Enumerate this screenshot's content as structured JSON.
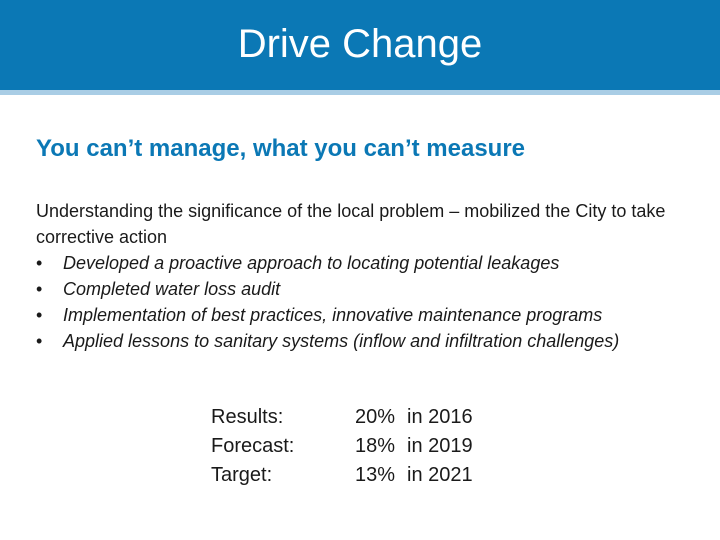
{
  "header": {
    "title": "Drive Change"
  },
  "main": {
    "subtitle": "You can’t manage, what you can’t measure",
    "intro": "Understanding the significance of the local problem – mobilized the City to take corrective action",
    "bullet_glyph": "•",
    "bullets": [
      "Developed a proactive approach to locating potential leakages",
      "Completed water loss audit",
      "Implementation of best practices,  innovative maintenance programs",
      "Applied lessons to sanitary systems (inflow and infiltration challenges)"
    ],
    "stats": [
      {
        "label": "Results:",
        "value": "20%",
        "year": "in 2016"
      },
      {
        "label": "Forecast:",
        "value": "18%",
        "year": "in 2019"
      },
      {
        "label": "Target:",
        "value": "13%",
        "year": "in 2021"
      }
    ]
  },
  "colors": {
    "title_bar": "#0b78b5",
    "title_rule": "#a9cde5",
    "subtitle": "#0b78b5"
  }
}
